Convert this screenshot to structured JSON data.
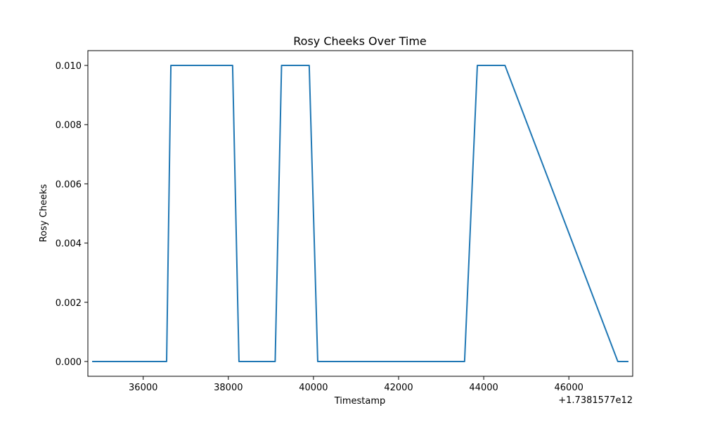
{
  "chart_data": {
    "type": "line",
    "title": "Rosy Cheeks Over Time",
    "xlabel": "Timestamp",
    "ylabel": "Rosy Cheeks",
    "x_offset_label": "+1.7381577e12",
    "xlim": [
      34700,
      47500
    ],
    "ylim": [
      -0.0005,
      0.0105
    ],
    "xticks": [
      36000,
      38000,
      40000,
      42000,
      44000,
      46000
    ],
    "xtick_labels": [
      "36000",
      "38000",
      "40000",
      "42000",
      "44000",
      "46000"
    ],
    "yticks": [
      0.0,
      0.002,
      0.004,
      0.006,
      0.008,
      0.01
    ],
    "ytick_labels": [
      "0.000",
      "0.002",
      "0.004",
      "0.006",
      "0.008",
      "0.010"
    ],
    "grid": false,
    "series": [
      {
        "color": "#1f77b4",
        "x": [
          34800,
          36550,
          36650,
          38100,
          38250,
          39100,
          39250,
          39900,
          40100,
          43550,
          43850,
          44500,
          47150,
          47400
        ],
        "y": [
          0.0,
          0.0,
          0.01,
          0.01,
          0.0,
          0.0,
          0.01,
          0.01,
          0.0,
          0.0,
          0.01,
          0.01,
          0.0,
          0.0
        ]
      }
    ]
  }
}
